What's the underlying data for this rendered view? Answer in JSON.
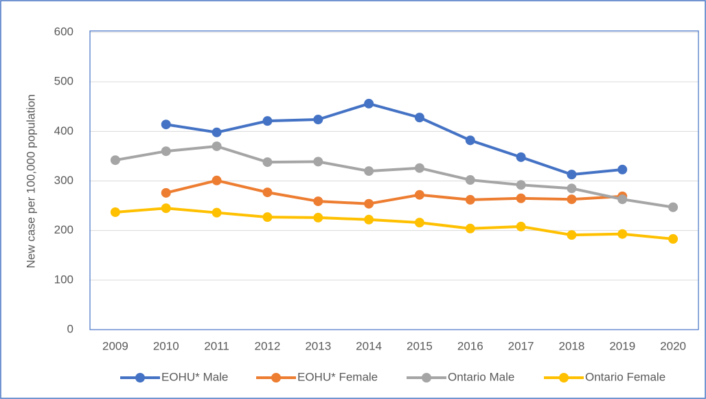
{
  "chart_data": {
    "type": "line",
    "y_label": "New case per 100,000 population",
    "categories": [
      "2009",
      "2010",
      "2011",
      "2012",
      "2013",
      "2014",
      "2015",
      "2016",
      "2017",
      "2018",
      "2019",
      "2020"
    ],
    "series": [
      {
        "name": "EOHU* Male",
        "color": "#4472c4",
        "values": [
          null,
          414,
          398,
          421,
          424,
          456,
          428,
          382,
          348,
          313,
          323,
          null
        ]
      },
      {
        "name": "EOHU* Female",
        "color": "#ed7d31",
        "values": [
          null,
          276,
          301,
          277,
          259,
          254,
          272,
          262,
          265,
          263,
          269,
          null
        ]
      },
      {
        "name": "Ontario Male",
        "color": "#a5a5a5",
        "values": [
          342,
          360,
          370,
          338,
          339,
          320,
          326,
          302,
          292,
          285,
          263,
          247
        ]
      },
      {
        "name": "Ontario Female",
        "color": "#ffc000",
        "values": [
          237,
          245,
          236,
          227,
          226,
          222,
          216,
          204,
          208,
          191,
          193,
          183
        ]
      }
    ],
    "ylim": [
      0,
      600
    ],
    "yticks": [
      0,
      100,
      200,
      300,
      400,
      500,
      600
    ],
    "grid": true,
    "legend": "bottom"
  }
}
